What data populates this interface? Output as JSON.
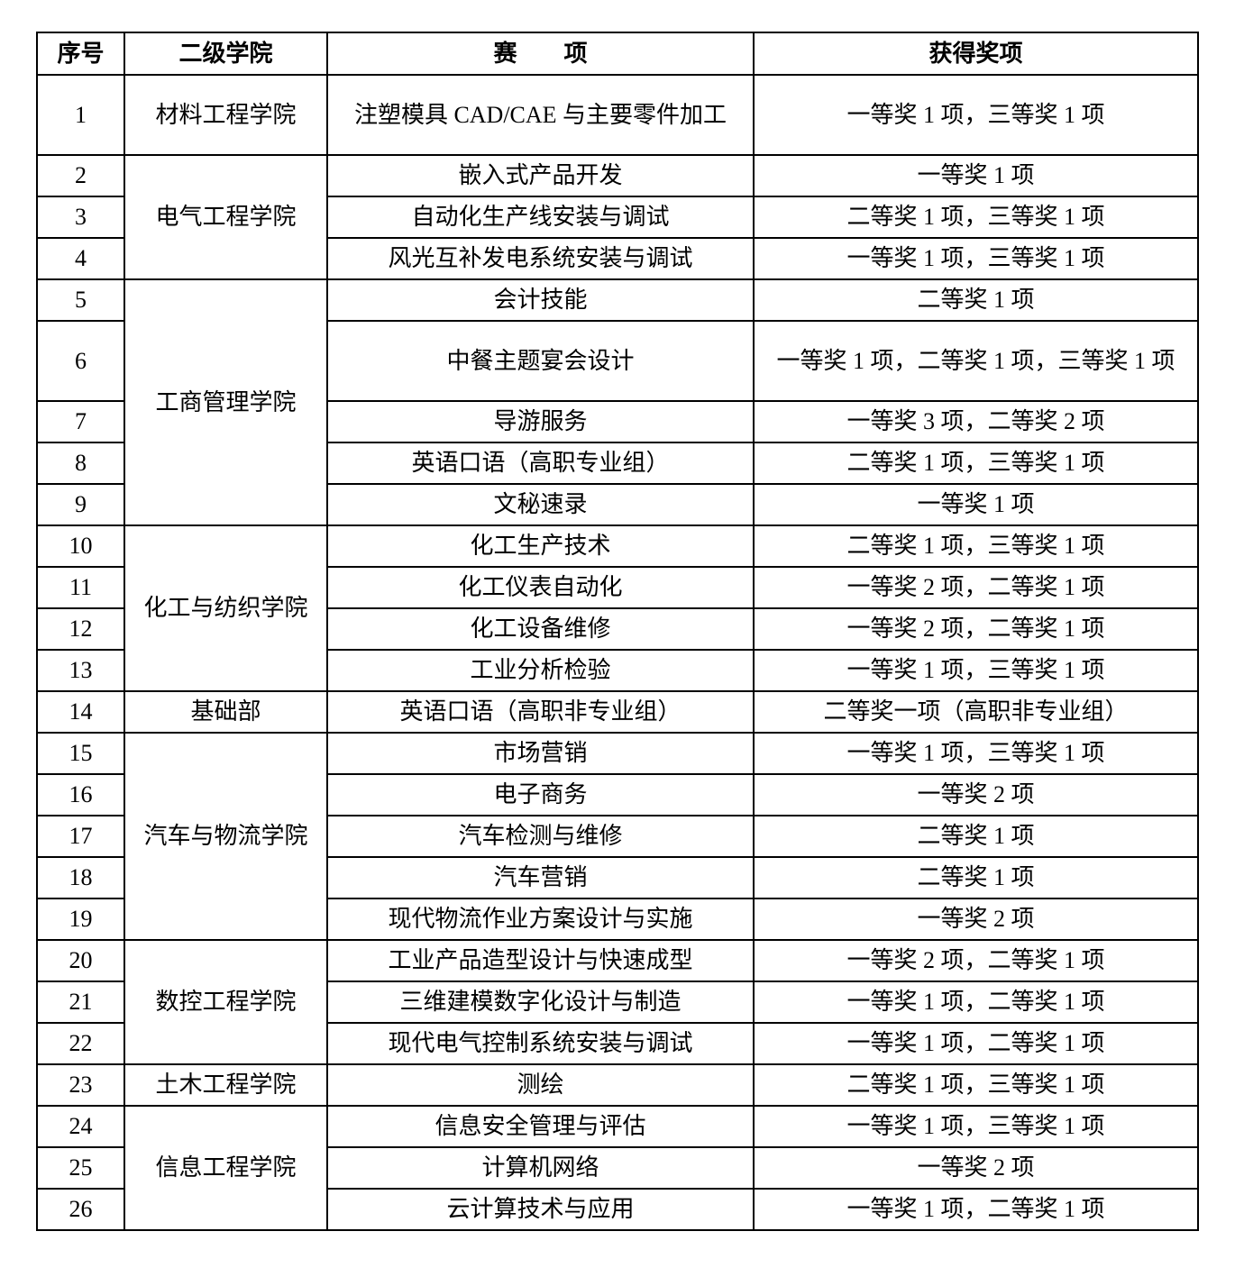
{
  "headers": [
    "序号",
    "二级学院",
    "赛　　项",
    "获得奖项"
  ],
  "groups": [
    {
      "college": "材料工程学院",
      "items": [
        {
          "no": "1",
          "event": "注塑模具 CAD/CAE 与主要零件加工",
          "award": "一等奖 1 项，三等奖 1 项",
          "tall": true
        }
      ]
    },
    {
      "college": "电气工程学院",
      "items": [
        {
          "no": "2",
          "event": "嵌入式产品开发",
          "award": "一等奖 1 项"
        },
        {
          "no": "3",
          "event": "自动化生产线安装与调试",
          "award": "二等奖 1 项，三等奖 1 项"
        },
        {
          "no": "4",
          "event": "风光互补发电系统安装与调试",
          "award": "一等奖 1 项，三等奖 1 项"
        }
      ]
    },
    {
      "college": "工商管理学院",
      "items": [
        {
          "no": "5",
          "event": "会计技能",
          "award": "二等奖 1 项"
        },
        {
          "no": "6",
          "event": "中餐主题宴会设计",
          "award": "一等奖 1 项，二等奖 1 项，三等奖 1 项",
          "tall": true
        },
        {
          "no": "7",
          "event": "导游服务",
          "award": "一等奖 3 项，二等奖 2 项"
        },
        {
          "no": "8",
          "event": "英语口语（高职专业组）",
          "award": "二等奖 1 项，三等奖 1 项"
        },
        {
          "no": "9",
          "event": "文秘速录",
          "award": "一等奖 1 项"
        }
      ]
    },
    {
      "college": "化工与纺织学院",
      "items": [
        {
          "no": "10",
          "event": "化工生产技术",
          "award": "二等奖 1 项，三等奖 1 项"
        },
        {
          "no": "11",
          "event": "化工仪表自动化",
          "award": "一等奖 2 项，二等奖 1 项"
        },
        {
          "no": "12",
          "event": "化工设备维修",
          "award": "一等奖 2 项，二等奖 1 项"
        },
        {
          "no": "13",
          "event": "工业分析检验",
          "award": "一等奖 1 项，三等奖 1 项"
        }
      ]
    },
    {
      "college": "基础部",
      "items": [
        {
          "no": "14",
          "event": "英语口语（高职非专业组）",
          "award": "二等奖一项（高职非专业组）"
        }
      ]
    },
    {
      "college": "汽车与物流学院",
      "items": [
        {
          "no": "15",
          "event": "市场营销",
          "award": "一等奖 1 项，三等奖 1 项"
        },
        {
          "no": "16",
          "event": "电子商务",
          "award": "一等奖 2 项"
        },
        {
          "no": "17",
          "event": "汽车检测与维修",
          "award": "二等奖 1 项"
        },
        {
          "no": "18",
          "event": "汽车营销",
          "award": "二等奖 1 项"
        },
        {
          "no": "19",
          "event": "现代物流作业方案设计与实施",
          "award": "一等奖 2 项"
        }
      ]
    },
    {
      "college": "数控工程学院",
      "items": [
        {
          "no": "20",
          "event": "工业产品造型设计与快速成型",
          "award": "一等奖 2 项，二等奖 1 项"
        },
        {
          "no": "21",
          "event": "三维建模数字化设计与制造",
          "award": "一等奖 1 项，二等奖 1 项"
        },
        {
          "no": "22",
          "event": "现代电气控制系统安装与调试",
          "award": "一等奖 1 项，二等奖 1 项"
        }
      ]
    },
    {
      "college": "土木工程学院",
      "items": [
        {
          "no": "23",
          "event": "测绘",
          "award": "二等奖 1 项，三等奖 1 项"
        }
      ]
    },
    {
      "college": "信息工程学院",
      "items": [
        {
          "no": "24",
          "event": "信息安全管理与评估",
          "award": "一等奖 1 项，三等奖 1 项"
        },
        {
          "no": "25",
          "event": "计算机网络",
          "award": "一等奖 2 项"
        },
        {
          "no": "26",
          "event": "云计算技术与应用",
          "award": "一等奖 1 项，二等奖 1 项"
        }
      ]
    }
  ]
}
